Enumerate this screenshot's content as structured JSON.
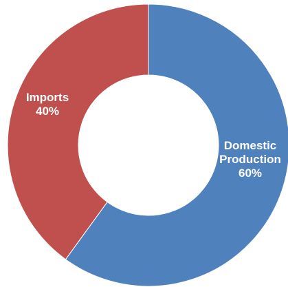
{
  "chart_data": {
    "type": "pie",
    "donut": true,
    "start_angle_deg": 0,
    "direction": "clockwise",
    "slices": [
      {
        "label_lines": [
          "Domestic",
          "Production"
        ],
        "value": 60,
        "percent_label": "60%",
        "color": "#4f81bd"
      },
      {
        "label_lines": [
          "Imports"
        ],
        "value": 40,
        "percent_label": "40%",
        "color": "#c0504d"
      }
    ],
    "legend": "none"
  }
}
